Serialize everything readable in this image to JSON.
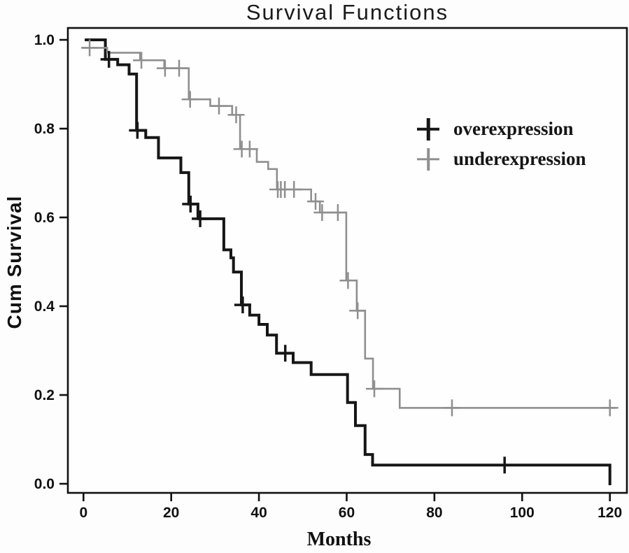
{
  "title": "Survival Functions",
  "axes": {
    "x_label": "Months",
    "y_label": "Cum Survival"
  },
  "chart_data": {
    "type": "line",
    "subtype": "kaplan-meier-step-survival",
    "title": "Survival Functions",
    "xlabel": "Months",
    "ylabel": "Cum Survival",
    "xlim": [
      0,
      122
    ],
    "ylim": [
      0.0,
      1.0
    ],
    "x_ticks": [
      0,
      20,
      40,
      60,
      80,
      100,
      120
    ],
    "y_ticks": [
      1.0,
      0.8,
      0.6,
      0.4,
      0.2,
      0.0
    ],
    "grid": false,
    "legend_position": "upper-right-inside",
    "frame_color": "#111111",
    "series": [
      {
        "name": "overexpression",
        "color": "#161616",
        "line_width": 4,
        "censor_stroke": 3.5,
        "start": [
          0.6,
          1.0
        ],
        "steps": [
          [
            5.0,
            0.956
          ],
          [
            7.8,
            0.944
          ],
          [
            10.4,
            0.923
          ],
          [
            12.1,
            0.796
          ],
          [
            14.2,
            0.78
          ],
          [
            17.1,
            0.734
          ],
          [
            22.2,
            0.701
          ],
          [
            24.0,
            0.63
          ],
          [
            26.1,
            0.597
          ],
          [
            32.0,
            0.527
          ],
          [
            33.6,
            0.509
          ],
          [
            34.2,
            0.477
          ],
          [
            36.0,
            0.403
          ],
          [
            37.9,
            0.38
          ],
          [
            40.0,
            0.359
          ],
          [
            41.9,
            0.335
          ],
          [
            44.0,
            0.294
          ],
          [
            47.8,
            0.273
          ],
          [
            51.9,
            0.246
          ],
          [
            60.2,
            0.183
          ],
          [
            62.0,
            0.131
          ],
          [
            64.2,
            0.066
          ],
          [
            65.9,
            0.042
          ],
          [
            120.0,
            0.0
          ]
        ],
        "censored": [
          [
            5.8,
            0.956
          ],
          [
            12.3,
            0.796
          ],
          [
            24.4,
            0.63
          ],
          [
            26.6,
            0.597
          ],
          [
            36.3,
            0.403
          ],
          [
            46.0,
            0.294
          ],
          [
            96.0,
            0.042
          ]
        ]
      },
      {
        "name": "underexpression",
        "color": "#8f8f8f",
        "line_width": 2.6,
        "censor_stroke": 2.5,
        "start": [
          0.0,
          0.982
        ],
        "steps": [
          [
            5.4,
            0.971
          ],
          [
            12.9,
            0.954
          ],
          [
            18.4,
            0.936
          ],
          [
            24.0,
            0.866
          ],
          [
            28.9,
            0.851
          ],
          [
            33.9,
            0.831
          ],
          [
            35.7,
            0.754
          ],
          [
            39.5,
            0.725
          ],
          [
            42.1,
            0.709
          ],
          [
            44.1,
            0.663
          ],
          [
            51.9,
            0.636
          ],
          [
            53.9,
            0.611
          ],
          [
            59.9,
            0.458
          ],
          [
            62.3,
            0.39
          ],
          [
            64.2,
            0.282
          ],
          [
            66.0,
            0.214
          ],
          [
            72.1,
            0.171
          ],
          [
            121.0,
            0.171
          ]
        ],
        "censored": [
          [
            1.4,
            0.982
          ],
          [
            13.2,
            0.954
          ],
          [
            18.6,
            0.936
          ],
          [
            21.8,
            0.936
          ],
          [
            24.3,
            0.866
          ],
          [
            30.9,
            0.851
          ],
          [
            34.8,
            0.831
          ],
          [
            36.1,
            0.754
          ],
          [
            37.9,
            0.754
          ],
          [
            44.3,
            0.663
          ],
          [
            45.0,
            0.663
          ],
          [
            45.9,
            0.663
          ],
          [
            48.0,
            0.663
          ],
          [
            52.9,
            0.636
          ],
          [
            54.4,
            0.611
          ],
          [
            58.0,
            0.611
          ],
          [
            60.3,
            0.458
          ],
          [
            62.5,
            0.39
          ],
          [
            66.3,
            0.214
          ],
          [
            84.0,
            0.171
          ],
          [
            120.0,
            0.171
          ]
        ]
      }
    ]
  }
}
